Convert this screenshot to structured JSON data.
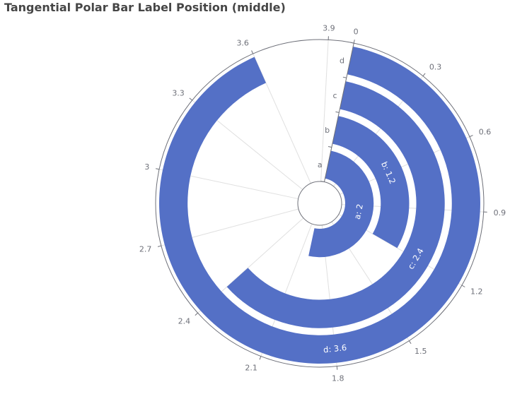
{
  "chart_data": {
    "type": "bar",
    "coordinate_system": "polar",
    "title": "Tangential Polar Bar Label Position (middle)",
    "categories": [
      "a",
      "b",
      "c",
      "d"
    ],
    "values": [
      2,
      1.2,
      2.4,
      3.6
    ],
    "value_axis_ticks": [
      "0",
      "0.3",
      "0.6",
      "0.9",
      "1.2",
      "1.5",
      "1.8",
      "2.1",
      "2.4",
      "2.7",
      "3",
      "3.3",
      "3.6",
      "3.9"
    ],
    "value_axis_max": 4,
    "value_axis_orientation": "angular",
    "category_axis_orientation": "radial",
    "bar_labels": [
      "a: 2",
      "b: 1.2",
      "c: 2.4",
      "d: 3.6"
    ],
    "label_position": "middle",
    "series_color": "#5470c6",
    "grid": true,
    "legend": false
  }
}
